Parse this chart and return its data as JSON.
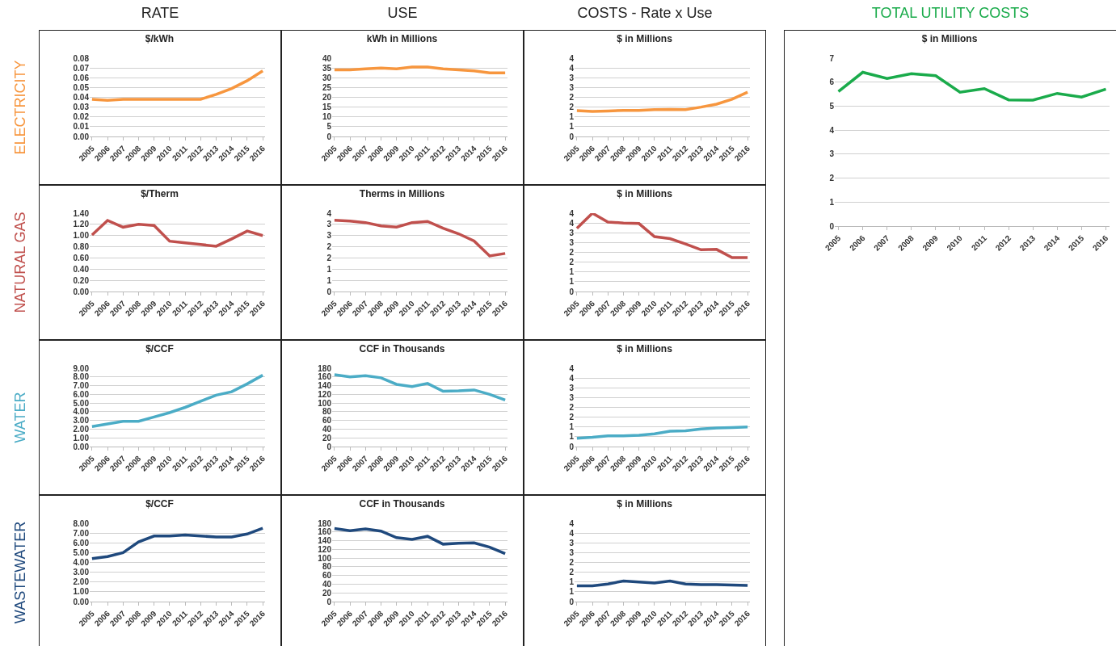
{
  "chart_data": [
    {
      "type": "line",
      "title": "RATE",
      "subtitle": "$/kWh",
      "ylabel": "ELECTRICITY",
      "categories": [
        "2005",
        "2006",
        "2007",
        "2008",
        "2009",
        "2010",
        "2011",
        "2012",
        "2013",
        "2014",
        "2015",
        "2016"
      ],
      "series": [
        {
          "color": "#f7963e",
          "values": [
            0.038,
            0.037,
            0.038,
            0.038,
            0.038,
            0.038,
            0.038,
            0.038,
            0.043,
            0.049,
            0.057,
            0.067
          ]
        }
      ],
      "ylim": [
        0,
        0.08
      ],
      "yticks": [
        {
          "value": 0,
          "label": "0.00"
        },
        {
          "value": 0.01,
          "label": "0.01"
        },
        {
          "value": 0.02,
          "label": "0.02"
        },
        {
          "value": 0.03,
          "label": "0.03"
        },
        {
          "value": 0.04,
          "label": "0.04"
        },
        {
          "value": 0.05,
          "label": "0.05"
        },
        {
          "value": 0.06,
          "label": "0.06"
        },
        {
          "value": 0.07,
          "label": "0.07"
        },
        {
          "value": 0.08,
          "label": "0.08"
        }
      ],
      "grid": "y"
    },
    {
      "type": "line",
      "title": "USE",
      "subtitle": "kWh in Millions",
      "categories": [
        "2005",
        "2006",
        "2007",
        "2008",
        "2009",
        "2010",
        "2011",
        "2012",
        "2013",
        "2014",
        "2015",
        "2016"
      ],
      "series": [
        {
          "color": "#f7963e",
          "values": [
            34,
            34,
            34.5,
            35,
            34.5,
            35.5,
            35.5,
            34.5,
            34,
            33.5,
            32.5,
            32.5
          ]
        }
      ],
      "ylim": [
        0,
        40
      ],
      "yticks": [
        0,
        5,
        10,
        15,
        20,
        25,
        30,
        35,
        40
      ],
      "grid": "y"
    },
    {
      "type": "line",
      "title": "COSTS - Rate x Use",
      "subtitle": "$ in Millions",
      "categories": [
        "2005",
        "2006",
        "2007",
        "2008",
        "2009",
        "2010",
        "2011",
        "2012",
        "2013",
        "2014",
        "2015",
        "2016"
      ],
      "series": [
        {
          "color": "#f7963e",
          "values": [
            1.32,
            1.28,
            1.3,
            1.33,
            1.33,
            1.37,
            1.38,
            1.37,
            1.5,
            1.65,
            1.9,
            2.26
          ]
        }
      ],
      "ylim": [
        0,
        4
      ],
      "yticks": [
        0,
        {
          "value": 0.5,
          "label": "1"
        },
        1,
        {
          "value": 1.5,
          "label": "2"
        },
        2,
        {
          "value": 2.5,
          "label": "3"
        },
        3,
        {
          "value": 3.5,
          "label": "4"
        },
        4
      ],
      "grid": "y"
    },
    {
      "type": "line",
      "subtitle": "$/Therm",
      "ylabel": "NATURAL GAS",
      "categories": [
        "2005",
        "2006",
        "2007",
        "2008",
        "2009",
        "2010",
        "2011",
        "2012",
        "2013",
        "2014",
        "2015",
        "2016"
      ],
      "series": [
        {
          "color": "#c0504d",
          "values": [
            1.01,
            1.27,
            1.15,
            1.2,
            1.18,
            0.9,
            0.87,
            0.84,
            0.81,
            0.94,
            1.08,
            1.0
          ]
        }
      ],
      "ylim": [
        0,
        1.4
      ],
      "yticks": [
        {
          "value": 0,
          "label": "0.00"
        },
        {
          "value": 0.2,
          "label": "0.20"
        },
        {
          "value": 0.4,
          "label": "0.40"
        },
        {
          "value": 0.6,
          "label": "0.60"
        },
        {
          "value": 0.8,
          "label": "0.80"
        },
        {
          "value": 1,
          "label": "1.00"
        },
        {
          "value": 1.2,
          "label": "1.20"
        },
        {
          "value": 1.4,
          "label": "1.40"
        }
      ],
      "grid": "y"
    },
    {
      "type": "line",
      "subtitle": "Therms in Millions",
      "categories": [
        "2005",
        "2006",
        "2007",
        "2008",
        "2009",
        "2010",
        "2011",
        "2012",
        "2013",
        "2014",
        "2015",
        "2016"
      ],
      "series": [
        {
          "color": "#c0504d",
          "values": [
            3.18,
            3.15,
            3.08,
            2.93,
            2.88,
            3.08,
            3.13,
            2.83,
            2.58,
            2.26,
            1.59,
            1.7
          ]
        }
      ],
      "ylim": [
        0,
        3.5
      ],
      "yticks": [
        0,
        {
          "value": 0.5,
          "label": "1"
        },
        1,
        {
          "value": 1.5,
          "label": "2"
        },
        2,
        {
          "value": 2.5,
          "label": "3"
        },
        3,
        {
          "value": 3.5,
          "label": "4"
        }
      ],
      "grid": "y"
    },
    {
      "type": "line",
      "subtitle": "$ in Millions",
      "categories": [
        "2005",
        "2006",
        "2007",
        "2008",
        "2009",
        "2010",
        "2011",
        "2012",
        "2013",
        "2014",
        "2015",
        "2016"
      ],
      "series": [
        {
          "color": "#c0504d",
          "values": [
            3.23,
            4.0,
            3.55,
            3.5,
            3.47,
            2.8,
            2.7,
            2.43,
            2.13,
            2.15,
            1.73,
            1.73
          ]
        }
      ],
      "ylim": [
        0,
        4
      ],
      "yticks": [
        0,
        {
          "value": 0.5,
          "label": "1"
        },
        1,
        {
          "value": 1.5,
          "label": "2"
        },
        2,
        {
          "value": 2.5,
          "label": "3"
        },
        3,
        {
          "value": 3.5,
          "label": "4"
        },
        4
      ],
      "grid": "y"
    },
    {
      "type": "line",
      "subtitle": "$/CCF",
      "ylabel": "WATER",
      "categories": [
        "2005",
        "2006",
        "2007",
        "2008",
        "2009",
        "2010",
        "2011",
        "2012",
        "2013",
        "2014",
        "2015",
        "2016"
      ],
      "series": [
        {
          "color": "#4bacc6",
          "values": [
            2.3,
            2.6,
            2.9,
            2.9,
            3.4,
            3.9,
            4.5,
            5.2,
            5.9,
            6.3,
            7.2,
            8.2
          ]
        }
      ],
      "ylim": [
        0,
        9
      ],
      "yticks": [
        {
          "value": 0,
          "label": "0.00"
        },
        {
          "value": 1,
          "label": "1.00"
        },
        {
          "value": 2,
          "label": "2.00"
        },
        {
          "value": 3,
          "label": "3.00"
        },
        {
          "value": 4,
          "label": "4.00"
        },
        {
          "value": 5,
          "label": "5.00"
        },
        {
          "value": 6,
          "label": "6.00"
        },
        {
          "value": 7,
          "label": "7.00"
        },
        {
          "value": 8,
          "label": "8.00"
        },
        {
          "value": 9,
          "label": "9.00"
        }
      ],
      "grid": "y"
    },
    {
      "type": "line",
      "subtitle": "CCF in Thousands",
      "categories": [
        "2005",
        "2006",
        "2007",
        "2008",
        "2009",
        "2010",
        "2011",
        "2012",
        "2013",
        "2014",
        "2015",
        "2016"
      ],
      "series": [
        {
          "color": "#4bacc6",
          "values": [
            165,
            160,
            163,
            158,
            143,
            138,
            145,
            127,
            128,
            130,
            120,
            107
          ]
        }
      ],
      "ylim": [
        0,
        180
      ],
      "yticks": [
        0,
        20,
        40,
        60,
        80,
        100,
        120,
        140,
        160,
        180
      ],
      "grid": "y"
    },
    {
      "type": "line",
      "subtitle": "$ in Millions",
      "categories": [
        "2005",
        "2006",
        "2007",
        "2008",
        "2009",
        "2010",
        "2011",
        "2012",
        "2013",
        "2014",
        "2015",
        "2016"
      ],
      "series": [
        {
          "color": "#4bacc6",
          "values": [
            0.42,
            0.47,
            0.55,
            0.55,
            0.58,
            0.65,
            0.78,
            0.8,
            0.9,
            0.95,
            0.97,
            1.0
          ]
        }
      ],
      "ylim": [
        0,
        4
      ],
      "yticks": [
        0,
        {
          "value": 0.5,
          "label": "1"
        },
        1,
        {
          "value": 1.5,
          "label": "2"
        },
        2,
        {
          "value": 2.5,
          "label": "3"
        },
        3,
        {
          "value": 3.5,
          "label": "4"
        },
        4
      ],
      "grid": "y"
    },
    {
      "type": "line",
      "subtitle": "$/CCF",
      "ylabel": "WASTEWATER",
      "categories": [
        "2005",
        "2006",
        "2007",
        "2008",
        "2009",
        "2010",
        "2011",
        "2012",
        "2013",
        "2014",
        "2015",
        "2016"
      ],
      "series": [
        {
          "color": "#1f497d",
          "values": [
            4.4,
            4.6,
            5.0,
            6.1,
            6.7,
            6.7,
            6.8,
            6.7,
            6.6,
            6.6,
            6.9,
            7.5
          ]
        }
      ],
      "ylim": [
        0,
        8
      ],
      "yticks": [
        {
          "value": 0,
          "label": "0.00"
        },
        {
          "value": 1,
          "label": "1.00"
        },
        {
          "value": 2,
          "label": "2.00"
        },
        {
          "value": 3,
          "label": "3.00"
        },
        {
          "value": 4,
          "label": "4.00"
        },
        {
          "value": 5,
          "label": "5.00"
        },
        {
          "value": 6,
          "label": "6.00"
        },
        {
          "value": 7,
          "label": "7.00"
        },
        {
          "value": 8,
          "label": "8.00"
        }
      ],
      "grid": "y"
    },
    {
      "type": "line",
      "subtitle": "CCF in Thousands",
      "categories": [
        "2005",
        "2006",
        "2007",
        "2008",
        "2009",
        "2010",
        "2011",
        "2012",
        "2013",
        "2014",
        "2015",
        "2016"
      ],
      "series": [
        {
          "color": "#1f497d",
          "values": [
            168,
            163,
            167,
            162,
            147,
            143,
            150,
            132,
            134,
            135,
            125,
            110
          ]
        }
      ],
      "ylim": [
        0,
        180
      ],
      "yticks": [
        0,
        20,
        40,
        60,
        80,
        100,
        120,
        140,
        160,
        180
      ],
      "grid": "y"
    },
    {
      "type": "line",
      "subtitle": "$ in Millions",
      "categories": [
        "2005",
        "2006",
        "2007",
        "2008",
        "2009",
        "2010",
        "2011",
        "2012",
        "2013",
        "2014",
        "2015",
        "2016"
      ],
      "series": [
        {
          "color": "#1f497d",
          "values": [
            0.8,
            0.8,
            0.9,
            1.05,
            1.0,
            0.95,
            1.05,
            0.9,
            0.87,
            0.87,
            0.85,
            0.82
          ]
        }
      ],
      "ylim": [
        0,
        4
      ],
      "yticks": [
        0,
        {
          "value": 0.5,
          "label": "1"
        },
        1,
        {
          "value": 1.5,
          "label": "2"
        },
        2,
        {
          "value": 2.5,
          "label": "3"
        },
        3,
        {
          "value": 3.5,
          "label": "4"
        },
        4
      ],
      "grid": "y"
    },
    {
      "type": "line",
      "title": "TOTAL UTILITY COSTS",
      "subtitle": "$ in Millions",
      "categories": [
        "2005",
        "2006",
        "2007",
        "2008",
        "2009",
        "2010",
        "2011",
        "2012",
        "2013",
        "2014",
        "2015",
        "2016"
      ],
      "series": [
        {
          "color": "#1aab4b",
          "values": [
            5.61,
            6.41,
            6.15,
            6.35,
            6.27,
            5.58,
            5.73,
            5.26,
            5.25,
            5.53,
            5.38,
            5.71
          ]
        }
      ],
      "ylim": [
        0,
        7
      ],
      "yticks": [
        0,
        1,
        2,
        3,
        4,
        5,
        6,
        7
      ],
      "grid": "y"
    }
  ]
}
